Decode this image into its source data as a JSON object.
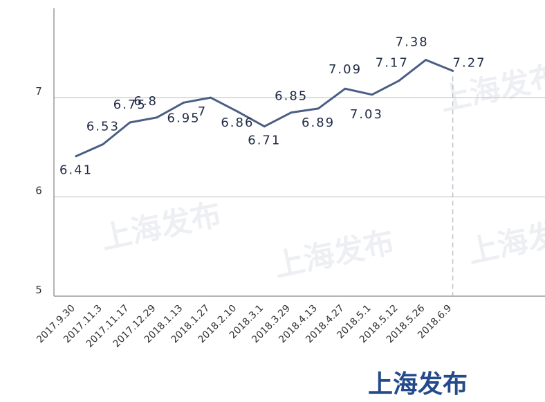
{
  "brand": {
    "logo_text": "上海发布",
    "watermark_text": "上海发布"
  },
  "colors": {
    "line": "#4a5e84",
    "grid": "#c8c8c8",
    "axis": "#9a9a9a",
    "marker_line": "#bfc3cc",
    "logo": "#244a8c"
  },
  "chart_data": {
    "type": "line",
    "title": "",
    "xlabel": "",
    "ylabel": "",
    "categories": [
      "2017.9.30",
      "2017.11.3",
      "2017.11.17",
      "2017.12.29",
      "2018.1.13",
      "2018.1.27",
      "2018.2.10",
      "2018.3.1",
      "2018.3.29",
      "2018.4.13",
      "2018.4.27",
      "2018.5.1",
      "2018.5.12",
      "2018.5.26",
      "2018.6.9"
    ],
    "series": [
      {
        "values": [
          6.41,
          6.53,
          6.75,
          6.8,
          6.95,
          7,
          6.86,
          6.71,
          6.85,
          6.89,
          7.09,
          7.03,
          7.17,
          7.38,
          7.27
        ],
        "labels": [
          "6.41",
          "6.53",
          "6.75",
          "6.8",
          "6.95",
          "7",
          "6.86",
          "6.71",
          "6.85",
          "6.89",
          "7.09",
          "7.03",
          "7.17",
          "7.38",
          "7.27"
        ]
      }
    ],
    "y_ticks": [
      "5",
      "6",
      "7"
    ],
    "ylim": [
      5,
      7.9
    ],
    "grid": true,
    "marker_at_last_point": true
  }
}
